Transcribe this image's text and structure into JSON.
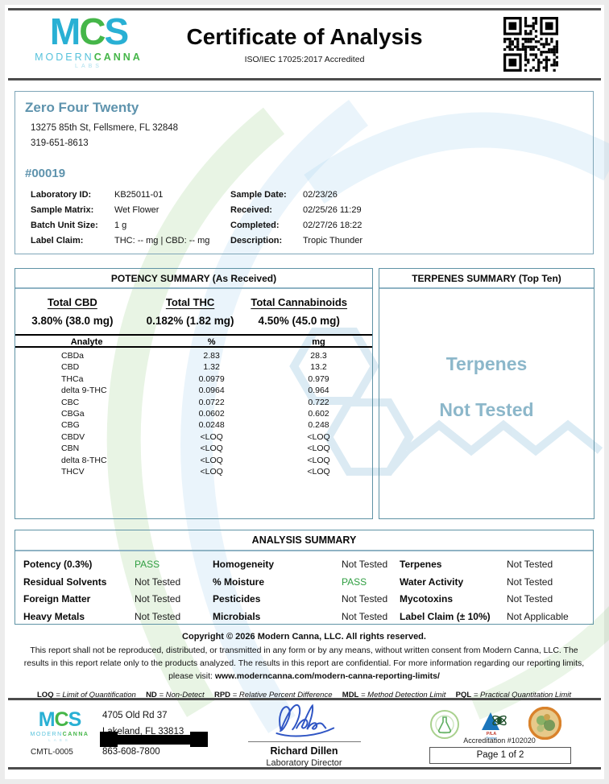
{
  "header": {
    "logo": {
      "m": "M",
      "c": "C",
      "s": "S",
      "word1": "MODERN",
      "word2": "CANNA",
      "word3": "LABS"
    },
    "title": "Certificate of Analysis",
    "subtitle": "ISO/IEC 17025:2017 Accredited",
    "qr_icon": "qr-code"
  },
  "client": {
    "name": "Zero Four Twenty",
    "address": "13275 85th St, Fellsmere, FL 32848",
    "phone": "319-651-8613",
    "sample_number": "#00019",
    "details_left": [
      {
        "label": "Laboratory ID:",
        "value": "KB25011-01"
      },
      {
        "label": "Sample Matrix:",
        "value": "Wet Flower"
      },
      {
        "label": "Batch Unit Size:",
        "value": "1 g"
      },
      {
        "label": "Label Claim:",
        "value": "THC: -- mg | CBD: -- mg"
      }
    ],
    "details_right": [
      {
        "label": "Sample Date:",
        "value": "02/23/26"
      },
      {
        "label": "Received:",
        "value": "02/25/26 11:29"
      },
      {
        "label": "Completed:",
        "value": "02/27/26 18:22"
      },
      {
        "label": "Description:",
        "value": "Tropic Thunder"
      }
    ]
  },
  "potency": {
    "title": "POTENCY SUMMARY (As Received)",
    "totals": [
      {
        "label": "Total CBD",
        "value": "3.80% (38.0 mg)"
      },
      {
        "label": "Total THC",
        "value": "0.182% (1.82 mg)"
      },
      {
        "label": "Total Cannabinoids",
        "value": "4.50% (45.0 mg)"
      }
    ],
    "columns": {
      "analyte": "Analyte",
      "pct": "%",
      "mg": "mg"
    },
    "analytes": [
      {
        "name": "CBDa",
        "pct": "2.83",
        "mg": "28.3"
      },
      {
        "name": "CBD",
        "pct": "1.32",
        "mg": "13.2"
      },
      {
        "name": "THCa",
        "pct": "0.0979",
        "mg": "0.979"
      },
      {
        "name": "delta 9-THC",
        "pct": "0.0964",
        "mg": "0.964"
      },
      {
        "name": "CBC",
        "pct": "0.0722",
        "mg": "0.722"
      },
      {
        "name": "CBGa",
        "pct": "0.0602",
        "mg": "0.602"
      },
      {
        "name": "CBG",
        "pct": "0.0248",
        "mg": "0.248"
      },
      {
        "name": "CBDV",
        "pct": "<LOQ",
        "mg": "<LOQ"
      },
      {
        "name": "CBN",
        "pct": "<LOQ",
        "mg": "<LOQ"
      },
      {
        "name": "delta 8-THC",
        "pct": "<LOQ",
        "mg": "<LOQ"
      },
      {
        "name": "THCV",
        "pct": "<LOQ",
        "mg": "<LOQ"
      }
    ]
  },
  "terpenes": {
    "title": "TERPENES SUMMARY (Top Ten)",
    "line1": "Terpenes",
    "line2": "Not Tested"
  },
  "analysis_summary": {
    "title": "ANALYSIS SUMMARY",
    "items": [
      {
        "label": "Potency (0.3%)",
        "value": "PASS",
        "status": "pass"
      },
      {
        "label": "Homogeneity",
        "value": "Not Tested",
        "status": "neutral"
      },
      {
        "label": "Terpenes",
        "value": "Not Tested",
        "status": "neutral"
      },
      {
        "label": "Residual Solvents",
        "value": "Not Tested",
        "status": "neutral"
      },
      {
        "label": "% Moisture",
        "value": "PASS",
        "status": "pass"
      },
      {
        "label": "Water Activity",
        "value": "Not Tested",
        "status": "neutral"
      },
      {
        "label": "Foreign Matter",
        "value": "Not Tested",
        "status": "neutral"
      },
      {
        "label": "Pesticides",
        "value": "Not Tested",
        "status": "neutral"
      },
      {
        "label": "Mycotoxins",
        "value": "Not Tested",
        "status": "neutral"
      },
      {
        "label": "Heavy Metals",
        "value": "Not Tested",
        "status": "neutral"
      },
      {
        "label": "Microbials",
        "value": "Not Tested",
        "status": "neutral"
      },
      {
        "label": "Label Claim (± 10%)",
        "value": "Not Applicable",
        "status": "neutral"
      }
    ]
  },
  "copyright": {
    "line1": "Copyright © 2026 Modern Canna, LLC. All rights reserved.",
    "body": "This report shall not be reproduced, distributed, or transmitted in any form or by any means, without written consent from Modern Canna, LLC.  The results in this report relate only to the products analyzed. The results in this report are confidential. For more information regarding our reporting limits, please visit: ",
    "link": "www.moderncanna.com/modern-canna-reporting-limits/"
  },
  "abbreviations": [
    {
      "abbr": "LOQ",
      "def": "= Limit of Quantification"
    },
    {
      "abbr": "ND",
      "def": "= Non-Detect"
    },
    {
      "abbr": "RPD",
      "def": "= Relative Percent Difference"
    },
    {
      "abbr": "MDL",
      "def": "= Method Detection Limit"
    },
    {
      "abbr": "PQL",
      "def": "= Practical Quantitation Limit"
    }
  ],
  "footer": {
    "lab_code": "CMTL-0005",
    "address_line1": "4705 Old Rd 37",
    "address_line2": "Lakeland, FL 33813",
    "phone": "863-608-7800",
    "signer_name": "Richard Dillen",
    "signer_title": "Laboratory Director",
    "accreditation": "Accreditation #102020",
    "page": "Page 1 of 2",
    "badges": [
      "flask-accreditation-seal",
      "pjla-testing-seal",
      "florida-agriculture-seal"
    ]
  },
  "colors": {
    "accent_teal": "#5f93a5",
    "heading_blue": "#5e93ad",
    "terpene_blue": "#8cb7ca",
    "pass_green": "#2f9e41",
    "logo_cyan": "#29b0d4",
    "logo_green": "#45b649"
  }
}
